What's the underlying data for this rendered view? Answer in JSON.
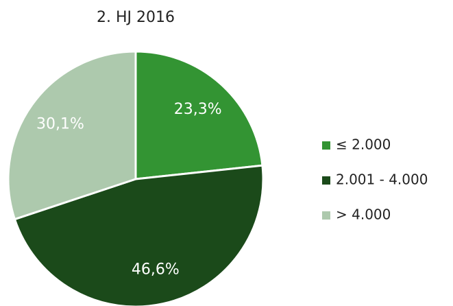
{
  "chart_data": {
    "type": "pie",
    "title": "2. HJ 2016",
    "categories": [
      "≤ 2.000",
      "2.001 - 4.000",
      "> 4.000"
    ],
    "values": [
      23.3,
      46.6,
      30.1
    ],
    "value_labels": [
      "23,3%",
      "46,6%",
      "30,1%"
    ],
    "colors": [
      "#339433",
      "#1b4a1a",
      "#adc9ad"
    ],
    "legend": "right"
  }
}
